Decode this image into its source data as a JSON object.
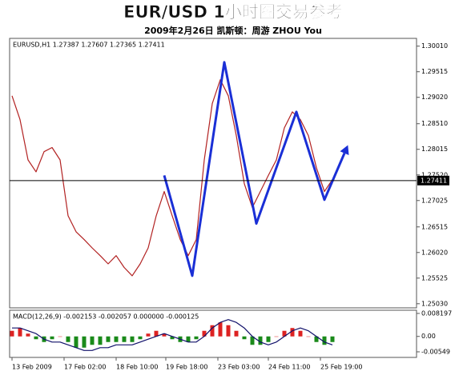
{
  "header": {
    "title": "EUR/USD 1小时图交易参考",
    "subtitle": "2009年2月26日 凯斯顿：周游 ZHOU You"
  },
  "chart_data": [
    {
      "type": "line",
      "label": "EURUSD,H1 1.27387 1.27607 1.27365 1.27411",
      "x": [
        0,
        1,
        2,
        3,
        4,
        5,
        6,
        7,
        8,
        9,
        10,
        11,
        12,
        13,
        14,
        15,
        16,
        17,
        18,
        19,
        20,
        21,
        22,
        23,
        24,
        25,
        26,
        27,
        28,
        29,
        30,
        31,
        32,
        33,
        34,
        35,
        36,
        37,
        38,
        39,
        40
      ],
      "xlim": [
        -0.3,
        50.5
      ],
      "ylim": [
        1.2495,
        1.3016
      ],
      "yticks": [
        {
          "value": 1.3001,
          "label": "1.30010"
        },
        {
          "value": 1.29515,
          "label": "1.29515"
        },
        {
          "value": 1.2902,
          "label": "1.29020"
        },
        {
          "value": 1.2851,
          "label": "1.28510"
        },
        {
          "value": 1.28015,
          "label": "1.28015"
        },
        {
          "value": 1.2752,
          "label": "1.27520"
        },
        {
          "value": 1.27025,
          "label": "1.27025"
        },
        {
          "value": 1.26515,
          "label": "1.26515"
        },
        {
          "value": 1.2602,
          "label": "1.26020"
        },
        {
          "value": 1.25525,
          "label": "1.25525"
        },
        {
          "value": 1.2503,
          "label": "1.25030"
        }
      ],
      "current_price": 1.27411,
      "series": [
        {
          "color": "#b22222",
          "values": [
            1.2905,
            1.2859,
            1.2781,
            1.2758,
            1.2797,
            1.2805,
            1.2781,
            1.2673,
            1.2642,
            1.2627,
            1.2611,
            1.2596,
            1.258,
            1.2596,
            1.2573,
            1.2557,
            1.258,
            1.2611,
            1.2673,
            1.272,
            1.2673,
            1.2627,
            1.2596,
            1.2627,
            1.2781,
            1.289,
            1.2936,
            1.2905,
            1.2828,
            1.2735,
            1.2689,
            1.272,
            1.2751,
            1.2781,
            1.2843,
            1.2874,
            1.2859,
            1.2828,
            1.2766,
            1.272,
            1.2743
          ]
        },
        {
          "color": "#1a2fd6",
          "x": [
            19,
            22.5,
            26.5,
            30.5,
            35.5,
            39,
            41.5
          ],
          "values": [
            1.2751,
            1.2557,
            1.297,
            1.2658,
            1.2874,
            1.2704,
            1.2794
          ]
        }
      ]
    },
    {
      "type": "bar",
      "label": "MACD(12,26,9) -0.002153 -0.002057 0.000000 -0.000125",
      "x": [
        0,
        1,
        2,
        3,
        4,
        5,
        6,
        7,
        8,
        9,
        10,
        11,
        12,
        13,
        14,
        15,
        16,
        17,
        18,
        19,
        20,
        21,
        22,
        23,
        24,
        25,
        26,
        27,
        28,
        29,
        30,
        31,
        32,
        33,
        34,
        35,
        36,
        37,
        38,
        39,
        40
      ],
      "xlim": [
        -0.3,
        50.5
      ],
      "ylim": [
        -0.00749,
        0.00934
      ],
      "yticks": [
        0.008197,
        {
          "value": 0,
          "label": "0.00"
        },
        -0.00549
      ],
      "xticks": [
        {
          "value": 0,
          "label": "13 Feb 2009"
        },
        {
          "value": 6.5,
          "label": "17 Feb 02:00"
        },
        {
          "value": 13,
          "label": "18 Feb 10:00"
        },
        {
          "value": 19.2,
          "label": "19 Feb 18:00"
        },
        {
          "value": 25.7,
          "label": "23 Feb 03:00"
        },
        {
          "value": 32,
          "label": "24 Feb 11:00"
        },
        {
          "value": 38.5,
          "label": "25 Feb 19:00"
        }
      ],
      "series": [
        {
          "type": "bar",
          "color": "#d22",
          "negative_color": "#1a8a1a",
          "values": [
            0.002,
            0.003,
            0.001,
            -0.001,
            -0.002,
            -0.001,
            0,
            -0.002,
            -0.004,
            -0.004,
            -0.003,
            -0.003,
            -0.002,
            -0.002,
            -0.002,
            -0.002,
            -0.001,
            0.001,
            0.002,
            0.001,
            -0.001,
            -0.002,
            -0.002,
            -0.001,
            0.002,
            0.004,
            0.005,
            0.004,
            0.002,
            -0.001,
            -0.003,
            -0.003,
            -0.002,
            0,
            0.002,
            0.003,
            0.002,
            0,
            -0.002,
            -0.003,
            -0.002
          ]
        },
        {
          "type": "line",
          "color": "#10106a",
          "values": [
            0.003,
            0.003,
            0.002,
            0.001,
            -0.001,
            -0.002,
            -0.002,
            -0.003,
            -0.004,
            -0.005,
            -0.005,
            -0.004,
            -0.004,
            -0.003,
            -0.003,
            -0.003,
            -0.002,
            -0.001,
            0,
            0.001,
            0,
            -0.001,
            -0.002,
            -0.002,
            0,
            0.003,
            0.005,
            0.006,
            0.005,
            0.003,
            0,
            -0.002,
            -0.003,
            -0.002,
            0,
            0.002,
            0.003,
            0.002,
            0,
            -0.002,
            -0.003
          ]
        }
      ]
    }
  ]
}
